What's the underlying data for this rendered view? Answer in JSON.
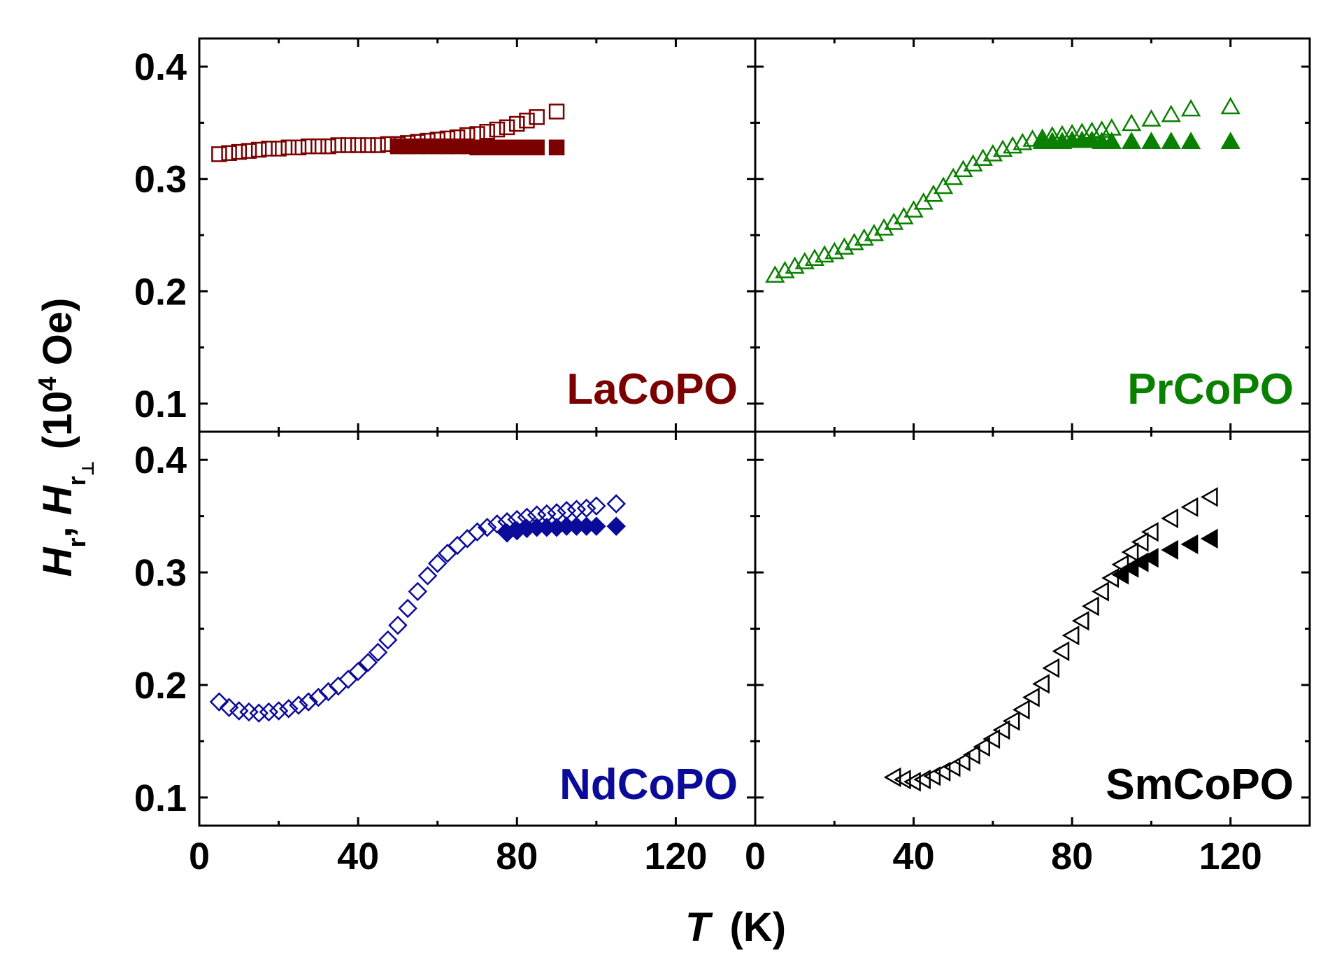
{
  "chart_data": {
    "type": "scatter",
    "layout": "2x2 panels with shared axes",
    "xlabel": {
      "symbol": "T",
      "unit": "(K)"
    },
    "ylabel": {
      "parts": [
        "H",
        "r",
        ", ",
        "H",
        "r",
        "⊥",
        " (10",
        "4",
        " Oe)"
      ]
    },
    "xlim": [
      0,
      140
    ],
    "ylim": [
      0.075,
      0.425
    ],
    "x_ticks": [
      0,
      40,
      80,
      120
    ],
    "x_tick_labels": [
      "0",
      "40",
      "80",
      "120"
    ],
    "y_ticks": [
      0.1,
      0.2,
      0.3,
      0.4
    ],
    "y_tick_labels": [
      "0.1",
      "0.2",
      "0.3",
      "0.4"
    ],
    "panels": [
      {
        "label": "LaCoPO",
        "color": "#7b0000",
        "marker": "square",
        "series": [
          {
            "name": "Hr (open)",
            "filled": false,
            "x": [
              5,
              7.5,
              10,
              12.5,
              15,
              17.5,
              20,
              22.5,
              25,
              27.5,
              30,
              32.5,
              35,
              37.5,
              40,
              42.5,
              45,
              47.5,
              50,
              52.5,
              55,
              57.5,
              60,
              62.5,
              65,
              67.5,
              70,
              72.5,
              75,
              77.5,
              80,
              82.5,
              85,
              90
            ],
            "y": [
              0.322,
              0.323,
              0.324,
              0.325,
              0.326,
              0.327,
              0.327,
              0.328,
              0.328,
              0.329,
              0.329,
              0.329,
              0.33,
              0.33,
              0.33,
              0.33,
              0.33,
              0.331,
              0.331,
              0.332,
              0.333,
              0.334,
              0.335,
              0.336,
              0.337,
              0.339,
              0.34,
              0.342,
              0.344,
              0.346,
              0.349,
              0.352,
              0.355,
              0.36
            ]
          },
          {
            "name": "Hr⊥ (filled)",
            "filled": true,
            "x": [
              50,
              52.5,
              55,
              57.5,
              60,
              62.5,
              65,
              67.5,
              70,
              72.5,
              75,
              77.5,
              80,
              82.5,
              85,
              90
            ],
            "y": [
              0.329,
              0.329,
              0.329,
              0.329,
              0.329,
              0.329,
              0.329,
              0.329,
              0.328,
              0.328,
              0.328,
              0.328,
              0.328,
              0.328,
              0.328,
              0.328
            ]
          }
        ]
      },
      {
        "label": "PrCoPO",
        "color": "#0a8000",
        "marker": "triangle-up",
        "series": [
          {
            "name": "Hr (open)",
            "filled": false,
            "x": [
              5,
              7.5,
              10,
              12.5,
              15,
              17.5,
              20,
              22.5,
              25,
              27.5,
              30,
              32.5,
              35,
              37.5,
              40,
              42.5,
              45,
              47.5,
              50,
              52.5,
              55,
              57.5,
              60,
              62.5,
              65,
              67.5,
              70,
              72.5,
              75,
              77.5,
              80,
              82.5,
              85,
              87.5,
              90,
              95,
              100,
              105,
              110,
              120
            ],
            "y": [
              0.214,
              0.218,
              0.222,
              0.226,
              0.229,
              0.232,
              0.235,
              0.239,
              0.243,
              0.247,
              0.251,
              0.256,
              0.261,
              0.266,
              0.272,
              0.279,
              0.286,
              0.293,
              0.301,
              0.308,
              0.313,
              0.318,
              0.322,
              0.326,
              0.329,
              0.332,
              0.335,
              0.336,
              0.338,
              0.339,
              0.34,
              0.341,
              0.342,
              0.343,
              0.345,
              0.349,
              0.353,
              0.357,
              0.362,
              0.364
            ]
          },
          {
            "name": "Hr⊥ (filled)",
            "filled": true,
            "x": [
              72.5,
              75,
              77.5,
              80,
              82.5,
              85,
              87.5,
              90,
              95,
              100,
              105,
              110,
              120
            ],
            "y": [
              0.333,
              0.333,
              0.333,
              0.334,
              0.334,
              0.334,
              0.333,
              0.333,
              0.333,
              0.333,
              0.333,
              0.333,
              0.333
            ]
          }
        ]
      },
      {
        "label": "NdCoPO",
        "color": "#0b0b9a",
        "marker": "diamond",
        "series": [
          {
            "name": "Hr (open)",
            "filled": false,
            "x": [
              5,
              7.5,
              10,
              12.5,
              15,
              17.5,
              20,
              22.5,
              25,
              27.5,
              30,
              32.5,
              35,
              37.5,
              40,
              42.5,
              45,
              47.5,
              50,
              52.5,
              55,
              57.5,
              60,
              62.5,
              65,
              67.5,
              70,
              72.5,
              75,
              77.5,
              80,
              82.5,
              85,
              87.5,
              90,
              92.5,
              95,
              97.5,
              100,
              105
            ],
            "y": [
              0.185,
              0.18,
              0.177,
              0.176,
              0.175,
              0.176,
              0.177,
              0.179,
              0.182,
              0.185,
              0.189,
              0.194,
              0.199,
              0.205,
              0.212,
              0.22,
              0.229,
              0.24,
              0.253,
              0.268,
              0.283,
              0.297,
              0.308,
              0.317,
              0.324,
              0.33,
              0.336,
              0.34,
              0.343,
              0.345,
              0.347,
              0.349,
              0.351,
              0.352,
              0.353,
              0.355,
              0.356,
              0.357,
              0.359,
              0.361
            ]
          },
          {
            "name": "Hr⊥ (filled)",
            "filled": true,
            "x": [
              77.5,
              80,
              82.5,
              85,
              87.5,
              90,
              92.5,
              95,
              97.5,
              100,
              105
            ],
            "y": [
              0.335,
              0.337,
              0.339,
              0.34,
              0.34,
              0.34,
              0.341,
              0.341,
              0.341,
              0.341,
              0.341
            ]
          }
        ]
      },
      {
        "label": "SmCoPO",
        "color": "#000000",
        "marker": "triangle-left",
        "series": [
          {
            "name": "Hr (open)",
            "filled": false,
            "x": [
              35,
              37.5,
              40,
              42.5,
              45,
              47.5,
              50,
              52.5,
              55,
              57.5,
              60,
              62.5,
              65,
              67.5,
              70,
              72.5,
              75,
              77.5,
              80,
              82.5,
              85,
              87.5,
              90,
              92.5,
              95,
              97.5,
              100,
              105,
              110,
              115
            ],
            "y": [
              0.118,
              0.116,
              0.114,
              0.116,
              0.119,
              0.123,
              0.127,
              0.132,
              0.138,
              0.145,
              0.152,
              0.16,
              0.168,
              0.178,
              0.189,
              0.201,
              0.215,
              0.23,
              0.244,
              0.257,
              0.27,
              0.283,
              0.295,
              0.307,
              0.318,
              0.327,
              0.336,
              0.348,
              0.358,
              0.367
            ]
          },
          {
            "name": "Hr⊥ (filled)",
            "filled": true,
            "x": [
              92.5,
              95,
              97.5,
              100,
              105,
              110,
              115
            ],
            "y": [
              0.298,
              0.304,
              0.309,
              0.313,
              0.32,
              0.325,
              0.33
            ]
          }
        ]
      }
    ]
  }
}
